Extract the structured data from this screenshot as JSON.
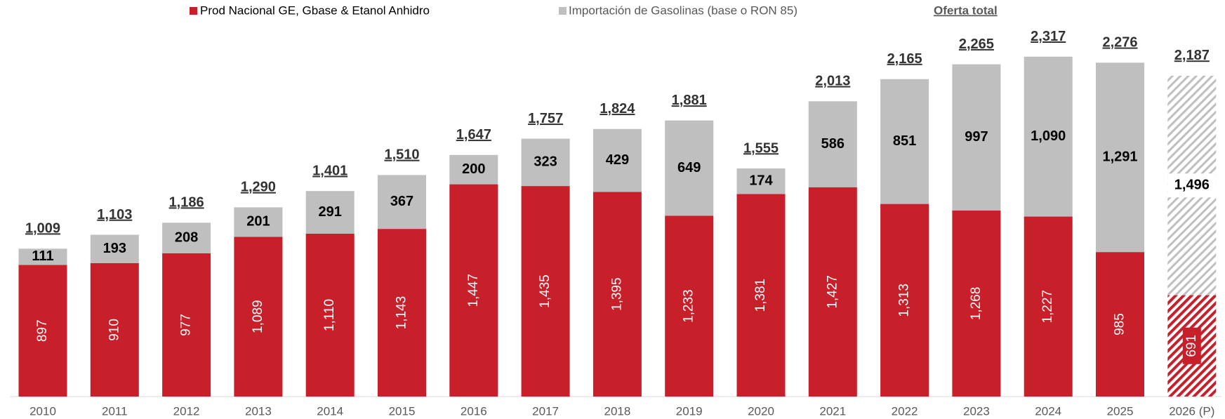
{
  "chart_data": {
    "type": "stacked-bar",
    "categories": [
      "2010",
      "2011",
      "2012",
      "2013",
      "2014",
      "2015",
      "2016",
      "2017",
      "2018",
      "2019",
      "2020",
      "2021",
      "2022",
      "2023",
      "2024",
      "2025",
      "2026 (P)"
    ],
    "hatched": [
      false,
      false,
      false,
      false,
      false,
      false,
      false,
      false,
      false,
      false,
      false,
      false,
      false,
      false,
      false,
      false,
      true
    ],
    "series": [
      {
        "name": "Prod Nacional GE, Gbase & Etanol Anhidro",
        "color": "#c8202a",
        "values": [
          897,
          910,
          977,
          1089,
          1110,
          1143,
          1447,
          1435,
          1395,
          1233,
          1381,
          1427,
          1313,
          1268,
          1227,
          985,
          691
        ],
        "value_labels": [
          "897",
          "910",
          "977",
          "1,089",
          "1,110",
          "1,143",
          "1,447",
          "1,435",
          "1,395",
          "1,233",
          "1,381",
          "1,427",
          "1,313",
          "1,268",
          "1,227",
          "985",
          "691"
        ]
      },
      {
        "name": "Importación de Gasolinas (base o RON 85)",
        "color": "#bfbfbf",
        "values": [
          111,
          193,
          208,
          201,
          291,
          367,
          200,
          323,
          429,
          649,
          174,
          586,
          851,
          997,
          1090,
          1291,
          1496
        ],
        "value_labels": [
          "111",
          "193",
          "208",
          "201",
          "291",
          "367",
          "200",
          "323",
          "429",
          "649",
          "174",
          "586",
          "851",
          "997",
          "1,090",
          "1,291",
          "1,496"
        ]
      },
      {
        "name": "Oferta total",
        "values": [
          1009,
          1103,
          1186,
          1290,
          1401,
          1510,
          1647,
          1757,
          1824,
          1881,
          1555,
          2013,
          2165,
          2265,
          2317,
          2276,
          2187
        ],
        "value_labels": [
          "1,009",
          "1,103",
          "1,186",
          "1,290",
          "1,401",
          "1,510",
          "1,647",
          "1,757",
          "1,824",
          "1,881",
          "1,555",
          "2,013",
          "2,165",
          "2,265",
          "2,317",
          "2,276",
          "2,187"
        ]
      }
    ]
  }
}
